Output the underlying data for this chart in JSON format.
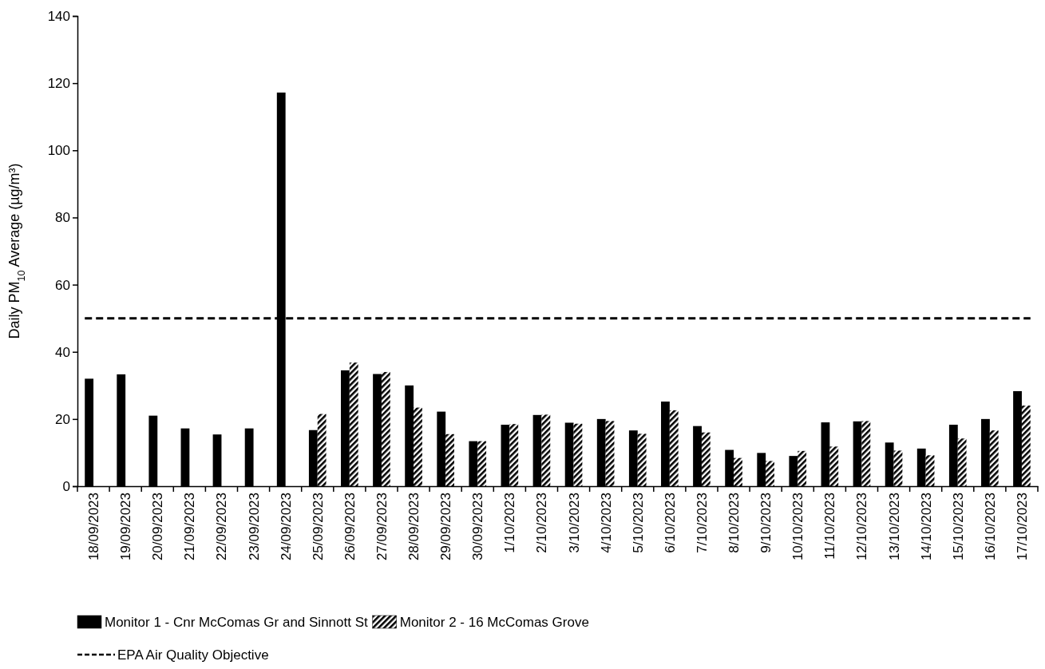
{
  "chart_data": {
    "type": "bar",
    "ylabel": "Daily PM$_{10}$ Average  (µg/m³)",
    "categories": [
      "18/09/2023",
      "19/09/2023",
      "20/09/2023",
      "21/09/2023",
      "22/09/2023",
      "23/09/2023",
      "24/09/2023",
      "25/09/2023",
      "26/09/2023",
      "27/09/2023",
      "28/09/2023",
      "29/09/2023",
      "30/09/2023",
      "1/10/2023",
      "2/10/2023",
      "3/10/2023",
      "4/10/2023",
      "5/10/2023",
      "6/10/2023",
      "7/10/2023",
      "8/10/2023",
      "9/10/2023",
      "10/10/2023",
      "11/10/2023",
      "12/10/2023",
      "13/10/2023",
      "14/10/2023",
      "15/10/2023",
      "16/10/2023",
      "17/10/2023"
    ],
    "series": [
      {
        "name": "Monitor 1 - Cnr McComas Gr and Sinnott St",
        "color": "#000000",
        "values": [
          32,
          33.3,
          21,
          17.2,
          15.4,
          17.2,
          117.2,
          16.7,
          34.5,
          33.4,
          30,
          22.2,
          13.4,
          18.3,
          21.2,
          18.9,
          20,
          16.6,
          25.2,
          17.9,
          10.8,
          9.9,
          9,
          19,
          19.3,
          13,
          11.2,
          18.3,
          20,
          28.3
        ]
      },
      {
        "name": "Monitor 2 - 16 McComas Grove",
        "color": "#000000",
        "values": [
          null,
          null,
          null,
          null,
          null,
          null,
          null,
          21.5,
          36.8,
          34,
          23.4,
          15.5,
          13.4,
          18.5,
          21.3,
          18.6,
          19.4,
          15.6,
          22.6,
          16,
          8.4,
          7.5,
          10.5,
          11.8,
          19.4,
          10.6,
          9.2,
          14.2,
          16.6,
          24
        ]
      }
    ],
    "ylim": [
      0,
      140
    ],
    "yticks": [
      0,
      20,
      40,
      60,
      80,
      100,
      120,
      140
    ],
    "grid": false,
    "legend": "bottom",
    "ref_lines": [
      {
        "axis": "y",
        "value": 50,
        "label": "EPA Air Quality Objective",
        "color": "#000000",
        "line_style": "dashed"
      }
    ]
  }
}
